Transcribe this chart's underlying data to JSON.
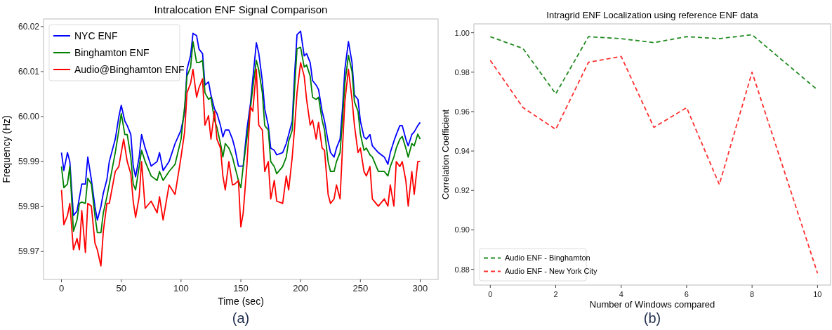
{
  "chart_data": [
    {
      "type": "line",
      "title": "Intralocation ENF Signal Comparison",
      "xlabel": "Time (sec)",
      "ylabel": "Frequency (Hz)",
      "annotations": [
        "(a)"
      ],
      "xlim": [
        -15,
        315
      ],
      "ylim": [
        59.9638,
        60.0217
      ],
      "xticks": [
        0,
        50,
        100,
        150,
        200,
        250,
        300
      ],
      "yticks": [
        {
          "value": 59.97,
          "label": "59.97"
        },
        {
          "value": 59.98,
          "label": "59.98"
        },
        {
          "value": 59.99,
          "label": "59.99"
        },
        {
          "value": 60.0,
          "label": "60.00"
        },
        {
          "value": 60.01,
          "label": "60.01"
        },
        {
          "value": 60.02,
          "label": "60.02"
        }
      ],
      "grid": false,
      "legend": "top left",
      "line_style": "solid",
      "series": [
        {
          "name": "NYC ENF",
          "color": "#0000ff",
          "x": [
            0,
            2,
            5,
            7,
            10,
            13,
            15,
            17,
            20,
            22,
            25,
            28,
            30,
            33,
            35,
            38,
            40,
            45,
            48,
            50,
            53,
            55,
            58,
            60,
            62,
            65,
            67,
            70,
            75,
            80,
            82,
            85,
            90,
            95,
            100,
            103,
            105,
            108,
            110,
            113,
            115,
            118,
            120,
            123,
            125,
            128,
            130,
            133,
            135,
            137,
            140,
            143,
            145,
            148,
            152,
            155,
            158,
            160,
            163,
            165,
            168,
            170,
            173,
            175,
            178,
            180,
            185,
            188,
            190,
            193,
            195,
            197,
            200,
            203,
            205,
            208,
            210,
            213,
            215,
            218,
            220,
            223,
            225,
            228,
            230,
            233,
            235,
            237,
            240,
            243,
            245,
            248,
            250,
            253,
            255,
            258,
            260,
            265,
            270,
            273,
            275,
            278,
            280,
            283,
            285,
            288,
            290,
            293,
            295,
            298,
            300
          ],
          "values": [
            59.992,
            59.988,
            59.992,
            59.99,
            59.978,
            59.979,
            59.982,
            59.985,
            59.985,
            59.991,
            59.986,
            59.98,
            59.977,
            59.98,
            59.983,
            59.986,
            59.99,
            59.995,
            60.0,
            60.0025,
            59.999,
            59.998,
            59.996,
            59.989,
            59.9866,
            59.991,
            59.996,
            59.993,
            59.989,
            59.99,
            59.992,
            59.988,
            59.99,
            59.994,
            59.997,
            60.001,
            60.0105,
            60.0136,
            60.0185,
            60.018,
            60.015,
            60.014,
            60.007,
            60.0077,
            60.0048,
            60.0017,
            60.0007,
            59.998,
            59.9955,
            59.997,
            59.997,
            59.995,
            59.993,
            59.989,
            59.989,
            59.997,
            60.0028,
            60.0084,
            60.0164,
            60.0141,
            60.0079,
            60.0017,
            59.998,
            59.993,
            59.9925,
            59.9915,
            59.992,
            59.994,
            59.996,
            59.999,
            60.0095,
            60.0182,
            60.019,
            60.0135,
            60.014,
            60.012,
            60.008,
            60.007,
            60.006,
            60.0012,
            59.999,
            59.9945,
            59.992,
            59.991,
            59.993,
            59.995,
            60.0017,
            60.0105,
            60.0167,
            60.012,
            60.0048,
            60.0038,
            59.999,
            59.9955,
            59.995,
            59.996,
            59.9935,
            59.992,
            59.991,
            59.9894,
            59.992,
            59.9945,
            59.996,
            59.998,
            59.998,
            59.995,
            59.9935,
            59.996,
            59.9966,
            59.998,
            59.9987
          ]
        },
        {
          "name": "Binghamton ENF",
          "color": "#008000",
          "x": [
            0,
            2,
            5,
            7,
            10,
            13,
            15,
            17,
            20,
            22,
            25,
            28,
            30,
            33,
            35,
            38,
            40,
            45,
            48,
            50,
            53,
            55,
            58,
            60,
            62,
            65,
            67,
            70,
            75,
            80,
            82,
            85,
            90,
            95,
            100,
            103,
            105,
            108,
            110,
            113,
            115,
            118,
            120,
            123,
            125,
            128,
            130,
            133,
            135,
            137,
            140,
            143,
            145,
            148,
            150,
            152,
            155,
            158,
            160,
            163,
            165,
            168,
            170,
            173,
            175,
            178,
            180,
            185,
            188,
            190,
            193,
            195,
            197,
            200,
            203,
            205,
            208,
            210,
            213,
            215,
            218,
            220,
            223,
            225,
            228,
            230,
            233,
            235,
            237,
            240,
            243,
            245,
            248,
            250,
            253,
            255,
            258,
            260,
            265,
            270,
            273,
            275,
            278,
            280,
            283,
            285,
            288,
            290,
            293,
            295,
            298,
            300
          ],
          "values": [
            59.9889,
            59.9842,
            59.985,
            59.989,
            59.9745,
            59.977,
            59.9807,
            59.981,
            59.9807,
            59.9863,
            59.985,
            59.978,
            59.9742,
            59.9742,
            59.9786,
            59.9822,
            59.985,
            59.992,
            59.997,
            60.0007,
            59.996,
            59.996,
            59.991,
            59.985,
            59.9837,
            59.9889,
            59.9925,
            59.99,
            59.9868,
            59.9858,
            59.9878,
            59.9858,
            59.9878,
            59.9894,
            59.995,
            60.0022,
            60.009,
            60.011,
            60.0167,
            60.012,
            60.012,
            60.0125,
            60.0053,
            60.0038,
            60.0043,
            59.9992,
            59.9976,
            59.994,
            59.991,
            59.994,
            59.993,
            59.991,
            59.9889,
            59.9858,
            59.9842,
            59.9889,
            59.995,
            60.0017,
            60.0064,
            60.0125,
            60.0104,
            60.0053,
            59.998,
            59.997,
            59.99,
            59.9889,
            59.9873,
            59.9889,
            59.991,
            59.9945,
            59.997,
            60.0064,
            60.0151,
            60.0154,
            60.011,
            60.0115,
            60.009,
            60.0043,
            60.0038,
            60.0043,
            59.9992,
            59.997,
            59.99,
            59.9878,
            59.9878,
            59.99,
            59.992,
            59.9992,
            60.0074,
            60.0136,
            60.01,
            60.0033,
            60.0012,
            59.9961,
            59.9925,
            59.993,
            59.9915,
            59.991,
            59.9878,
            59.9878,
            59.9868,
            59.9889,
            59.991,
            59.993,
            59.995,
            59.9956,
            59.993,
            59.991,
            59.994,
            59.9935,
            59.9961,
            59.995
          ]
        },
        {
          "name": "Audio@Binghamton ENF",
          "color": "#ff0000",
          "x": [
            0,
            2,
            5,
            7,
            10,
            13,
            15,
            17,
            20,
            22,
            25,
            28,
            30,
            33,
            35,
            38,
            40,
            45,
            48,
            50,
            52,
            55,
            58,
            60,
            62,
            65,
            67,
            70,
            75,
            80,
            82,
            85,
            90,
            95,
            100,
            103,
            105,
            108,
            110,
            113,
            115,
            118,
            120,
            123,
            125,
            128,
            130,
            133,
            135,
            137,
            140,
            143,
            145,
            148,
            150,
            152,
            155,
            158,
            160,
            163,
            165,
            168,
            170,
            173,
            175,
            178,
            180,
            185,
            188,
            190,
            193,
            195,
            197,
            200,
            203,
            205,
            208,
            210,
            213,
            215,
            218,
            220,
            223,
            225,
            228,
            230,
            233,
            235,
            237,
            240,
            243,
            245,
            248,
            250,
            253,
            255,
            258,
            260,
            265,
            270,
            273,
            275,
            278,
            280,
            283,
            285,
            288,
            290,
            293,
            295,
            298,
            300
          ],
          "values": [
            59.9837,
            59.976,
            59.978,
            59.9807,
            59.9704,
            59.9729,
            59.9704,
            59.9791,
            59.9698,
            59.9807,
            59.9801,
            59.9719,
            59.9704,
            59.9668,
            59.9745,
            59.9807,
            59.9807,
            59.9878,
            59.9889,
            59.992,
            59.995,
            59.99,
            59.9873,
            59.9812,
            59.9776,
            59.9822,
            59.99,
            59.9796,
            59.9812,
            59.9786,
            59.9822,
            59.977,
            59.9848,
            59.9827,
            59.991,
            59.9966,
            60.0053,
            60.0074,
            60.0105,
            60.0043,
            60.0064,
            60.0084,
            59.9981,
            60.0002,
            59.995,
            60.0012,
            59.995,
            59.993,
            59.9868,
            59.9837,
            59.99,
            59.9848,
            59.985,
            59.9858,
            59.9755,
            59.9786,
            59.9889,
            60.0022,
            60.0012,
            60.0105,
            59.9981,
            59.997,
            59.9878,
            59.99,
            59.9817,
            59.9858,
            59.9812,
            59.9807,
            59.9868,
            59.9837,
            59.991,
            59.9976,
            60.0053,
            60.012,
            60.009,
            60.0038,
            59.9981,
            59.9992,
            59.995,
            59.9987,
            59.993,
            59.9925,
            59.9827,
            59.9807,
            59.9817,
            59.9848,
            59.9817,
            59.993,
            60.0033,
            60.0105,
            60.0038,
            59.9981,
            59.992,
            59.993,
            59.9878,
            59.9868,
            59.9889,
            59.9817,
            59.9801,
            59.9817,
            59.9801,
            59.9848,
            59.9801,
            59.99,
            59.9889,
            59.99,
            59.9858,
            59.9801,
            59.9878,
            59.9827,
            59.99,
            59.99
          ]
        }
      ]
    },
    {
      "type": "line",
      "title": "Intragrid ENF Localization using reference ENF data",
      "xlabel": "Number of Windows compared",
      "ylabel": "Correlation Coefficient",
      "annotations": [
        "(b)"
      ],
      "xlim": [
        -0.5,
        10.4
      ],
      "ylim": [
        0.872,
        1.0045
      ],
      "xticks": [
        0,
        2,
        4,
        6,
        8,
        10
      ],
      "yticks": [
        {
          "value": 0.88,
          "label": "0.88"
        },
        {
          "value": 0.9,
          "label": "0.90"
        },
        {
          "value": 0.92,
          "label": "0.92"
        },
        {
          "value": 0.94,
          "label": "0.94"
        },
        {
          "value": 0.96,
          "label": "0.96"
        },
        {
          "value": 0.98,
          "label": "0.98"
        },
        {
          "value": 1.0,
          "label": "1.00"
        }
      ],
      "grid": false,
      "legend": "bottom left",
      "line_style": "dashed",
      "x": [
        0,
        1,
        2,
        3,
        4,
        5,
        6,
        7,
        8,
        9,
        10
      ],
      "series": [
        {
          "name": "Audio ENF - Binghamton",
          "color": "#228b22",
          "values": [
            0.998,
            0.992,
            0.969,
            0.998,
            0.997,
            0.995,
            0.998,
            0.997,
            0.999,
            0.985,
            0.971
          ]
        },
        {
          "name": "Audio ENF - New York City",
          "color": "#ff3030",
          "values": [
            0.986,
            0.962,
            0.951,
            0.985,
            0.988,
            0.952,
            0.962,
            0.923,
            0.98,
            0.929,
            0.878
          ]
        }
      ]
    }
  ]
}
